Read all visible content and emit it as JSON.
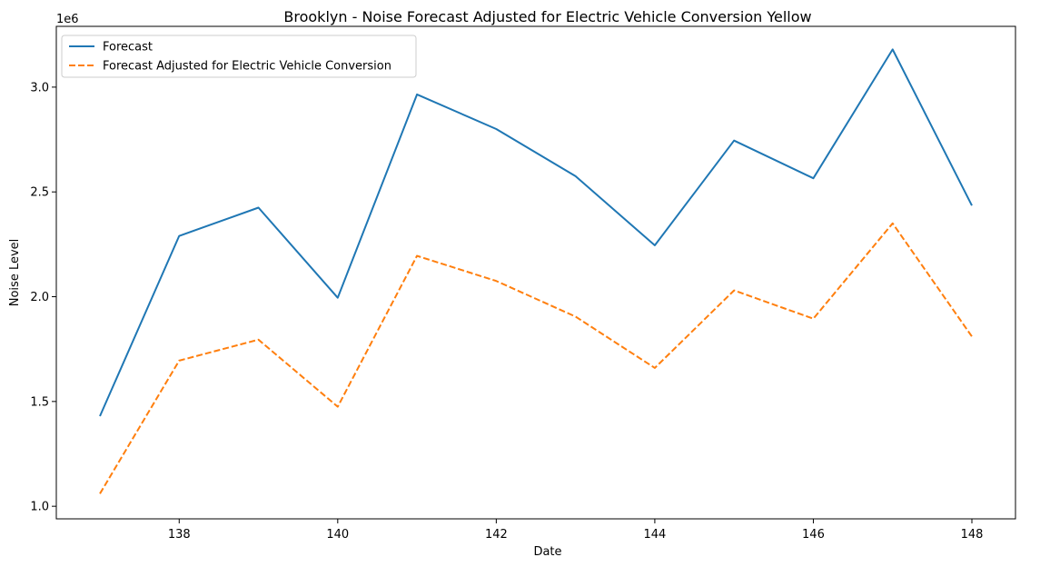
{
  "chart_data": {
    "type": "line",
    "title": "Brooklyn - Noise Forecast Adjusted for Electric Vehicle Conversion Yellow",
    "xlabel": "Date",
    "ylabel": "Noise Level",
    "y_scale_label": "1e6",
    "x": [
      137,
      138,
      139,
      140,
      141,
      142,
      143,
      144,
      145,
      146,
      147,
      148
    ],
    "xticks": [
      138,
      140,
      142,
      144,
      146,
      148
    ],
    "yticks": [
      1.0,
      1.5,
      2.0,
      2.5,
      3.0
    ],
    "ytick_labels": [
      "1.0",
      "1.5",
      "2.0",
      "2.5",
      "3.0"
    ],
    "xlim": [
      136.45,
      148.55
    ],
    "ylim": [
      0.94,
      3.29
    ],
    "grid": false,
    "legend_position": "upper-left",
    "series": [
      {
        "name": "Forecast",
        "color": "#1f77b4",
        "style": "solid",
        "values": [
          1.43,
          2.29,
          2.425,
          1.995,
          2.965,
          2.8,
          2.575,
          2.245,
          2.745,
          2.565,
          3.18,
          2.435
        ]
      },
      {
        "name": "Forecast Adjusted for Electric Vehicle Conversion",
        "color": "#ff7f0e",
        "style": "dashed",
        "values": [
          1.06,
          1.695,
          1.795,
          1.475,
          2.195,
          2.075,
          1.905,
          1.66,
          2.03,
          1.895,
          2.35,
          1.81
        ]
      }
    ]
  }
}
